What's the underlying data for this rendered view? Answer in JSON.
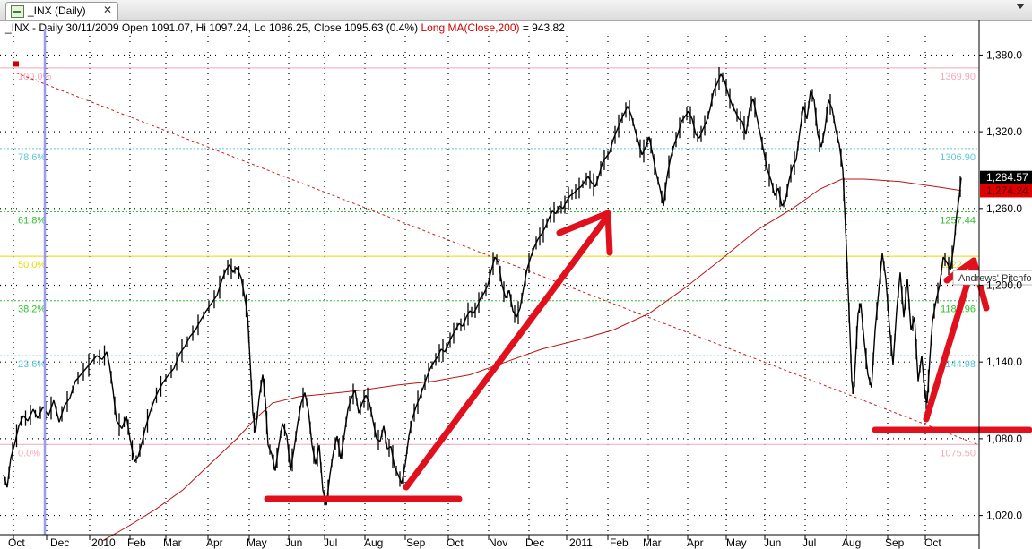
{
  "tab": {
    "title": "_INX (Daily)",
    "close_glyph": "✕"
  },
  "header": {
    "info": "_INX - Daily 30/11/2009 Open 1091.07, Hi 1097.24, Lo 1086.25, Close 1095.63 (0.4%)",
    "ma": "Long MA(Close,200)",
    "ma_value": "= 943.82"
  },
  "colors": {
    "price": "#000000",
    "ma": "#b81414",
    "arrow": "#e0101c",
    "trend": "#c81e1e",
    "marker": "#cc0000"
  },
  "chart_data": {
    "type": "line",
    "ylim": [
      1005,
      1395
    ],
    "y_ticks": [
      1020,
      1080,
      1140,
      1200,
      1260,
      1320,
      1380
    ],
    "y_tick_labels": [
      "1,020.0",
      "1,080.0",
      "1,140.0",
      "1,200.0",
      "1,260.0",
      "1,320.0",
      "1,380.0"
    ],
    "x_labels": [
      "Oct",
      "Dec",
      "2010",
      "Feb",
      "Mar",
      "Apr",
      "May",
      "Jun",
      "Jul",
      "Aug",
      "Sep",
      "Oct",
      "Nov",
      "Dec",
      "2011",
      "Feb",
      "Mar",
      "Apr",
      "May",
      "Jun",
      "Jul",
      "Aug",
      "Sep",
      "Oct"
    ],
    "price_badges": [
      {
        "value": 1284.57,
        "label": "1,284.57",
        "bg": "#000000",
        "fg": "#ffffff"
      },
      {
        "value": 1274.24,
        "label": "1,274.24",
        "bg": "#e00000",
        "fg": "#5a0000"
      }
    ],
    "fib_levels": [
      {
        "pct": "100.0%",
        "value": 1369.9,
        "label": "1369.90",
        "color": "#f4a8b8"
      },
      {
        "pct": "78.6%",
        "value": 1306.9,
        "label": "1306.90",
        "color": "#5ec8d8"
      },
      {
        "pct": "61.8%",
        "value": 1257.44,
        "label": "1257.44",
        "color": "#30c030"
      },
      {
        "pct": "50.0%",
        "value": 1222.7,
        "label": "1222.70",
        "color": "#e8d800"
      },
      {
        "pct": "38.2%",
        "value": 1187.96,
        "label": "1187.96",
        "color": "#30c030"
      },
      {
        "pct": "23.6%",
        "value": 1144.98,
        "label": "1144.98",
        "color": "#5ec8d8"
      },
      {
        "pct": "0.0%",
        "value": 1075.5,
        "label": "1075.50",
        "color": "#f4a8b8"
      }
    ],
    "pitchfork_label": "Andrews' Pitchfork",
    "series": [
      {
        "values": [
          [
            0,
            1052
          ],
          [
            4,
            1042
          ],
          [
            8,
            1065
          ],
          [
            12,
            1075
          ],
          [
            17,
            1090
          ],
          [
            22,
            1098
          ],
          [
            27,
            1094
          ],
          [
            33,
            1103
          ],
          [
            38,
            1096
          ],
          [
            44,
            1105
          ],
          [
            50,
            1098
          ],
          [
            56,
            1110
          ],
          [
            62,
            1093
          ],
          [
            68,
            1106
          ],
          [
            74,
            1112
          ],
          [
            80,
            1125
          ],
          [
            86,
            1130
          ],
          [
            92,
            1135
          ],
          [
            98,
            1140
          ],
          [
            104,
            1145
          ],
          [
            110,
            1142
          ],
          [
            115,
            1148
          ],
          [
            118,
            1138
          ],
          [
            122,
            1118
          ],
          [
            126,
            1094
          ],
          [
            132,
            1088
          ],
          [
            137,
            1098
          ],
          [
            141,
            1080
          ],
          [
            146,
            1062
          ],
          [
            150,
            1066
          ],
          [
            154,
            1076
          ],
          [
            158,
            1088
          ],
          [
            163,
            1100
          ],
          [
            168,
            1110
          ],
          [
            173,
            1118
          ],
          [
            178,
            1124
          ],
          [
            184,
            1130
          ],
          [
            190,
            1135
          ],
          [
            196,
            1146
          ],
          [
            202,
            1152
          ],
          [
            208,
            1160
          ],
          [
            214,
            1165
          ],
          [
            220,
            1173
          ],
          [
            226,
            1180
          ],
          [
            232,
            1186
          ],
          [
            238,
            1192
          ],
          [
            244,
            1205
          ],
          [
            248,
            1212
          ],
          [
            252,
            1216
          ],
          [
            256,
            1210
          ],
          [
            260,
            1214
          ],
          [
            265,
            1206
          ],
          [
            269,
            1190
          ],
          [
            272,
            1178
          ],
          [
            275,
            1140
          ],
          [
            278,
            1100
          ],
          [
            281,
            1085
          ],
          [
            285,
            1112
          ],
          [
            289,
            1130
          ],
          [
            292,
            1110
          ],
          [
            295,
            1075
          ],
          [
            299,
            1068
          ],
          [
            303,
            1055
          ],
          [
            307,
            1075
          ],
          [
            311,
            1092
          ],
          [
            316,
            1082
          ],
          [
            320,
            1055
          ],
          [
            324,
            1072
          ],
          [
            328,
            1092
          ],
          [
            332,
            1108
          ],
          [
            336,
            1116
          ],
          [
            340,
            1102
          ],
          [
            344,
            1075
          ],
          [
            348,
            1060
          ],
          [
            352,
            1075
          ],
          [
            356,
            1040
          ],
          [
            360,
            1028
          ],
          [
            364,
            1052
          ],
          [
            368,
            1070
          ],
          [
            372,
            1082
          ],
          [
            376,
            1064
          ],
          [
            380,
            1083
          ],
          [
            384,
            1103
          ],
          [
            388,
            1112
          ],
          [
            392,
            1118
          ],
          [
            396,
            1100
          ],
          [
            400,
            1108
          ],
          [
            404,
            1114
          ],
          [
            408,
            1108
          ],
          [
            412,
            1094
          ],
          [
            416,
            1080
          ],
          [
            420,
            1078
          ],
          [
            424,
            1090
          ],
          [
            428,
            1072
          ],
          [
            432,
            1074
          ],
          [
            436,
            1058
          ],
          [
            440,
            1052
          ],
          [
            444,
            1045
          ],
          [
            448,
            1060
          ],
          [
            452,
            1082
          ],
          [
            456,
            1096
          ],
          [
            460,
            1105
          ],
          [
            464,
            1112
          ],
          [
            468,
            1120
          ],
          [
            472,
            1128
          ],
          [
            476,
            1135
          ],
          [
            480,
            1140
          ],
          [
            484,
            1144
          ],
          [
            488,
            1150
          ],
          [
            492,
            1148
          ],
          [
            496,
            1154
          ],
          [
            500,
            1160
          ],
          [
            504,
            1165
          ],
          [
            508,
            1170
          ],
          [
            512,
            1168
          ],
          [
            516,
            1175
          ],
          [
            520,
            1180
          ],
          [
            524,
            1178
          ],
          [
            528,
            1183
          ],
          [
            532,
            1190
          ],
          [
            536,
            1194
          ],
          [
            540,
            1200
          ],
          [
            544,
            1212
          ],
          [
            548,
            1222
          ],
          [
            552,
            1218
          ],
          [
            556,
            1200
          ],
          [
            560,
            1190
          ],
          [
            564,
            1196
          ],
          [
            568,
            1180
          ],
          [
            572,
            1175
          ],
          [
            576,
            1182
          ],
          [
            580,
            1198
          ],
          [
            584,
            1213
          ],
          [
            588,
            1222
          ],
          [
            592,
            1230
          ],
          [
            596,
            1236
          ],
          [
            600,
            1240
          ],
          [
            604,
            1245
          ],
          [
            608,
            1252
          ],
          [
            612,
            1258
          ],
          [
            616,
            1256
          ],
          [
            620,
            1262
          ],
          [
            624,
            1260
          ],
          [
            628,
            1266
          ],
          [
            632,
            1270
          ],
          [
            636,
            1272
          ],
          [
            640,
            1275
          ],
          [
            644,
            1277
          ],
          [
            648,
            1281
          ],
          [
            652,
            1285
          ],
          [
            656,
            1280
          ],
          [
            660,
            1277
          ],
          [
            664,
            1286
          ],
          [
            668,
            1296
          ],
          [
            672,
            1300
          ],
          [
            676,
            1304
          ],
          [
            680,
            1314
          ],
          [
            684,
            1321
          ],
          [
            688,
            1328
          ],
          [
            692,
            1334
          ],
          [
            696,
            1340
          ],
          [
            700,
            1333
          ],
          [
            704,
            1322
          ],
          [
            708,
            1312
          ],
          [
            712,
            1302
          ],
          [
            716,
            1308
          ],
          [
            720,
            1316
          ],
          [
            724,
            1302
          ],
          [
            728,
            1287
          ],
          [
            732,
            1276
          ],
          [
            736,
            1262
          ],
          [
            740,
            1285
          ],
          [
            744,
            1300
          ],
          [
            748,
            1310
          ],
          [
            752,
            1318
          ],
          [
            756,
            1328
          ],
          [
            760,
            1332
          ],
          [
            764,
            1336
          ],
          [
            768,
            1330
          ],
          [
            772,
            1318
          ],
          [
            776,
            1315
          ],
          [
            780,
            1322
          ],
          [
            784,
            1328
          ],
          [
            788,
            1338
          ],
          [
            792,
            1352
          ],
          [
            796,
            1358
          ],
          [
            800,
            1365
          ],
          [
            804,
            1360
          ],
          [
            808,
            1350
          ],
          [
            812,
            1342
          ],
          [
            816,
            1336
          ],
          [
            820,
            1330
          ],
          [
            824,
            1328
          ],
          [
            828,
            1318
          ],
          [
            832,
            1338
          ],
          [
            836,
            1346
          ],
          [
            840,
            1332
          ],
          [
            844,
            1318
          ],
          [
            848,
            1304
          ],
          [
            852,
            1290
          ],
          [
            856,
            1282
          ],
          [
            860,
            1270
          ],
          [
            864,
            1276
          ],
          [
            868,
            1262
          ],
          [
            872,
            1266
          ],
          [
            876,
            1282
          ],
          [
            880,
            1293
          ],
          [
            884,
            1298
          ],
          [
            888,
            1320
          ],
          [
            892,
            1340
          ],
          [
            896,
            1330
          ],
          [
            900,
            1352
          ],
          [
            904,
            1345
          ],
          [
            908,
            1318
          ],
          [
            912,
            1308
          ],
          [
            916,
            1322
          ],
          [
            920,
            1345
          ],
          [
            924,
            1338
          ],
          [
            928,
            1322
          ],
          [
            932,
            1310
          ],
          [
            936,
            1290
          ],
          [
            938,
            1260
          ],
          [
            940,
            1230
          ],
          [
            942,
            1195
          ],
          [
            944,
            1162
          ],
          [
            946,
            1125
          ],
          [
            948,
            1115
          ],
          [
            950,
            1140
          ],
          [
            953,
            1178
          ],
          [
            956,
            1186
          ],
          [
            960,
            1155
          ],
          [
            964,
            1130
          ],
          [
            968,
            1120
          ],
          [
            972,
            1165
          ],
          [
            976,
            1195
          ],
          [
            980,
            1225
          ],
          [
            984,
            1205
          ],
          [
            988,
            1168
          ],
          [
            992,
            1138
          ],
          [
            996,
            1180
          ],
          [
            1000,
            1210
          ],
          [
            1004,
            1175
          ],
          [
            1008,
            1205
          ],
          [
            1012,
            1165
          ],
          [
            1016,
            1175
          ],
          [
            1020,
            1125
          ],
          [
            1024,
            1145
          ],
          [
            1028,
            1112
          ],
          [
            1030,
            1108
          ],
          [
            1033,
            1142
          ],
          [
            1036,
            1172
          ],
          [
            1040,
            1188
          ],
          [
            1044,
            1200
          ],
          [
            1048,
            1222
          ],
          [
            1052,
            1218
          ],
          [
            1056,
            1212
          ],
          [
            1060,
            1232
          ],
          [
            1063,
            1255
          ],
          [
            1066,
            1270
          ],
          [
            1068,
            1284
          ]
        ]
      },
      {
        "values": [
          [
            110,
            1000
          ],
          [
            140,
            1012
          ],
          [
            170,
            1025
          ],
          [
            200,
            1040
          ],
          [
            230,
            1060
          ],
          [
            260,
            1080
          ],
          [
            280,
            1095
          ],
          [
            300,
            1108
          ],
          [
            330,
            1113
          ],
          [
            360,
            1115
          ],
          [
            400,
            1118
          ],
          [
            440,
            1122
          ],
          [
            480,
            1125
          ],
          [
            520,
            1130
          ],
          [
            560,
            1140
          ],
          [
            600,
            1150
          ],
          [
            640,
            1157
          ],
          [
            680,
            1165
          ],
          [
            720,
            1178
          ],
          [
            760,
            1198
          ],
          [
            800,
            1220
          ],
          [
            840,
            1243
          ],
          [
            880,
            1260
          ],
          [
            910,
            1275
          ],
          [
            935,
            1283
          ],
          [
            960,
            1283
          ],
          [
            1000,
            1281
          ],
          [
            1040,
            1277
          ],
          [
            1068,
            1274
          ]
        ]
      }
    ]
  }
}
